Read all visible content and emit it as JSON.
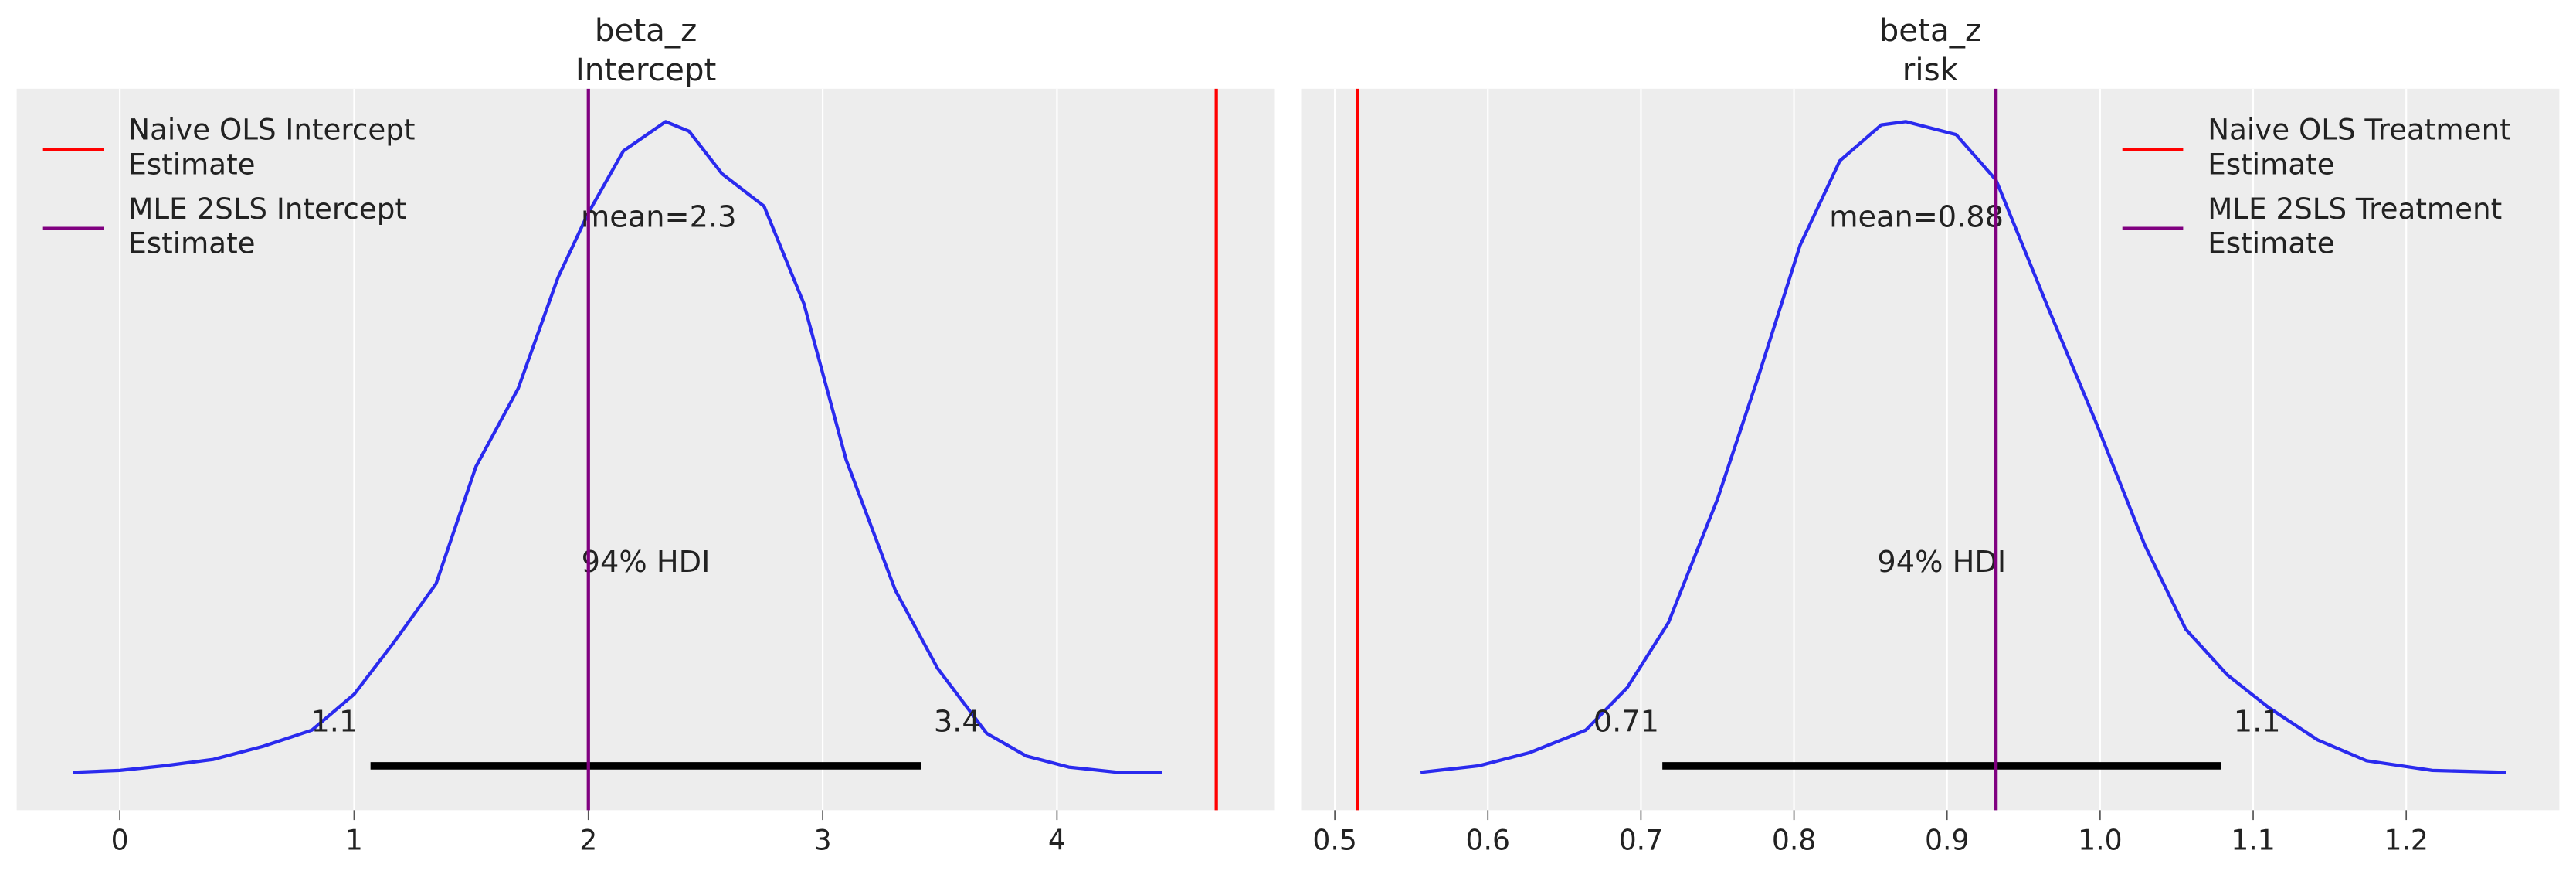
{
  "chart_data": [
    {
      "type": "line",
      "title": [
        "beta_z",
        "Intercept"
      ],
      "xlim": [
        -0.44,
        4.93
      ],
      "xticks": [
        0,
        1,
        2,
        3,
        4
      ],
      "grid": true,
      "density": {
        "color": "#2a2aee",
        "x": [
          -0.2,
          0,
          0.19,
          0.4,
          0.61,
          0.82,
          1.0,
          1.17,
          1.35,
          1.52,
          1.7,
          1.87,
          2.0,
          2.15,
          2.33,
          2.43,
          2.57,
          2.75,
          2.92,
          3.1,
          3.31,
          3.49,
          3.7,
          3.87,
          4.05,
          4.26,
          4.45
        ],
        "y": [
          0.0,
          0.003,
          0.01,
          0.02,
          0.04,
          0.065,
          0.12,
          0.2,
          0.29,
          0.47,
          0.59,
          0.76,
          0.86,
          0.955,
          1.0,
          0.985,
          0.92,
          0.87,
          0.72,
          0.48,
          0.28,
          0.16,
          0.06,
          0.025,
          0.008,
          0.0,
          0.0
        ]
      },
      "mean": 2.3,
      "mean_label": "mean=2.3",
      "hdi": [
        1.07,
        3.42
      ],
      "hdi_label": "94% HDI",
      "hdi_low_label": "1.1",
      "hdi_high_label": "3.4",
      "vlines": [
        {
          "name": "Naive OLS Intercept\n Estimate",
          "line1": "Naive OLS Intercept",
          "line2": " Estimate",
          "x": 4.68,
          "color": "#ff0000"
        },
        {
          "name": "MLE 2SLS Intercept\n Estimate",
          "line1": "MLE 2SLS Intercept",
          "line2": " Estimate",
          "x": 2.0,
          "color": "#800080"
        }
      ],
      "legend": "top-left"
    },
    {
      "type": "line",
      "title": [
        "beta_z",
        "risk"
      ],
      "xlim": [
        0.478,
        1.3
      ],
      "xticks": [
        0.5,
        0.6,
        0.7,
        0.8,
        0.9,
        1.0,
        1.1,
        1.2
      ],
      "xtick_labels": [
        "0.5",
        "0.6",
        "0.7",
        "0.8",
        "0.9",
        "1.0",
        "1.1",
        "1.2"
      ],
      "grid": true,
      "density": {
        "color": "#2a2aee",
        "x": [
          0.556,
          0.594,
          0.627,
          0.664,
          0.691,
          0.718,
          0.75,
          0.777,
          0.804,
          0.83,
          0.857,
          0.873,
          0.906,
          0.932,
          0.965,
          0.997,
          1.029,
          1.056,
          1.083,
          1.11,
          1.142,
          1.174,
          1.217,
          1.265
        ],
        "y": [
          0.0,
          0.01,
          0.03,
          0.065,
          0.13,
          0.23,
          0.42,
          0.61,
          0.81,
          0.94,
          0.995,
          1.0,
          0.98,
          0.91,
          0.72,
          0.54,
          0.35,
          0.22,
          0.15,
          0.1,
          0.05,
          0.018,
          0.003,
          0.0
        ]
      },
      "mean": 0.88,
      "mean_label": "mean=0.88",
      "hdi": [
        0.714,
        1.079
      ],
      "hdi_label": "94% HDI",
      "hdi_low_label": "0.71",
      "hdi_high_label": "1.1",
      "vlines": [
        {
          "name": "Naive OLS Treatment\n Estimate",
          "line1": "Naive OLS Treatment",
          "line2": " Estimate",
          "x": 0.515,
          "color": "#ff0000"
        },
        {
          "name": "MLE 2SLS Treatment\n Estimate",
          "line1": "MLE 2SLS Treatment",
          "line2": " Estimate",
          "x": 0.932,
          "color": "#800080"
        }
      ],
      "legend": "top-right"
    }
  ]
}
